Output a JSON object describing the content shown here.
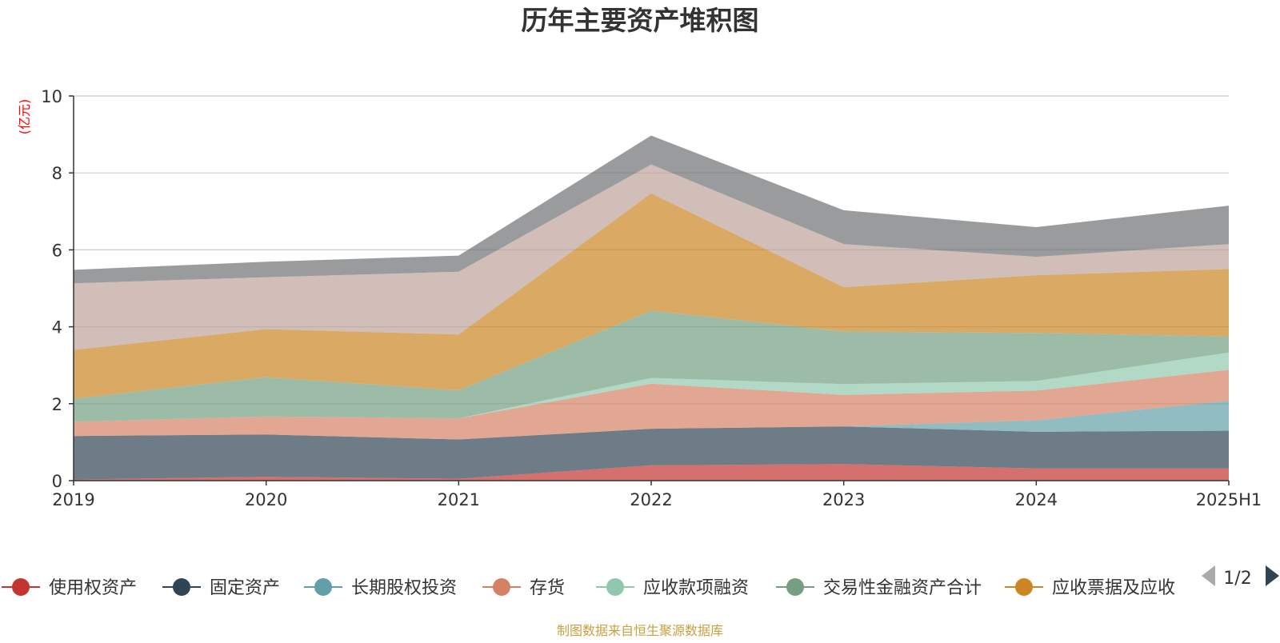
{
  "chart_data": {
    "type": "area",
    "stacked": true,
    "title": "历年主要资产堆积图",
    "ylabel": "(亿元)",
    "xlabel": "",
    "categories": [
      "2019",
      "2020",
      "2021",
      "2022",
      "2023",
      "2024",
      "2025H1"
    ],
    "ylim": [
      0,
      10
    ],
    "yticks": [
      "0",
      "2",
      "4",
      "6",
      "8",
      "10"
    ],
    "grid": true,
    "legend_position": "bottom",
    "legend_page": "1/2",
    "series": [
      {
        "name": "使用权资产",
        "color": "#c23531",
        "values": [
          0.03,
          0.1,
          0.05,
          0.4,
          0.43,
          0.32,
          0.32
        ]
      },
      {
        "name": "固定资产",
        "color": "#2f4554",
        "values": [
          1.13,
          1.1,
          1.02,
          0.95,
          0.98,
          0.95,
          0.98
        ]
      },
      {
        "name": "长期股权投资",
        "color": "#61a0a8",
        "values": [
          0.0,
          0.0,
          0.0,
          0.0,
          0.0,
          0.3,
          0.78
        ]
      },
      {
        "name": "存货",
        "color": "#d48265",
        "values": [
          0.37,
          0.47,
          0.55,
          1.17,
          0.82,
          0.77,
          0.8
        ]
      },
      {
        "name": "应收款项融资",
        "color": "#91c7ae",
        "values": [
          0.0,
          0.0,
          0.0,
          0.15,
          0.28,
          0.25,
          0.45
        ]
      },
      {
        "name": "交易性金融资产合计",
        "color": "#749f83",
        "values": [
          0.6,
          1.02,
          0.73,
          1.75,
          1.37,
          1.25,
          0.42
        ]
      },
      {
        "name": "应收票据及应收",
        "color": "#ca8622",
        "values": [
          1.27,
          1.25,
          1.45,
          3.05,
          1.15,
          1.5,
          1.75
        ]
      },
      {
        "name": "",
        "color": "#bda29a",
        "values": [
          1.73,
          1.35,
          1.63,
          0.75,
          1.12,
          0.48,
          0.65
        ]
      },
      {
        "name": "",
        "color": "#6e7074",
        "values": [
          0.35,
          0.4,
          0.42,
          0.75,
          0.88,
          0.77,
          1.0
        ]
      }
    ]
  },
  "footer": {
    "source": "制图数据来自恒生聚源数据库"
  },
  "colors": {
    "ylabel": "#ff0000",
    "source": "#c8a040",
    "pager_active": "#2f4554",
    "pager_inactive": "#aaaaaa"
  }
}
